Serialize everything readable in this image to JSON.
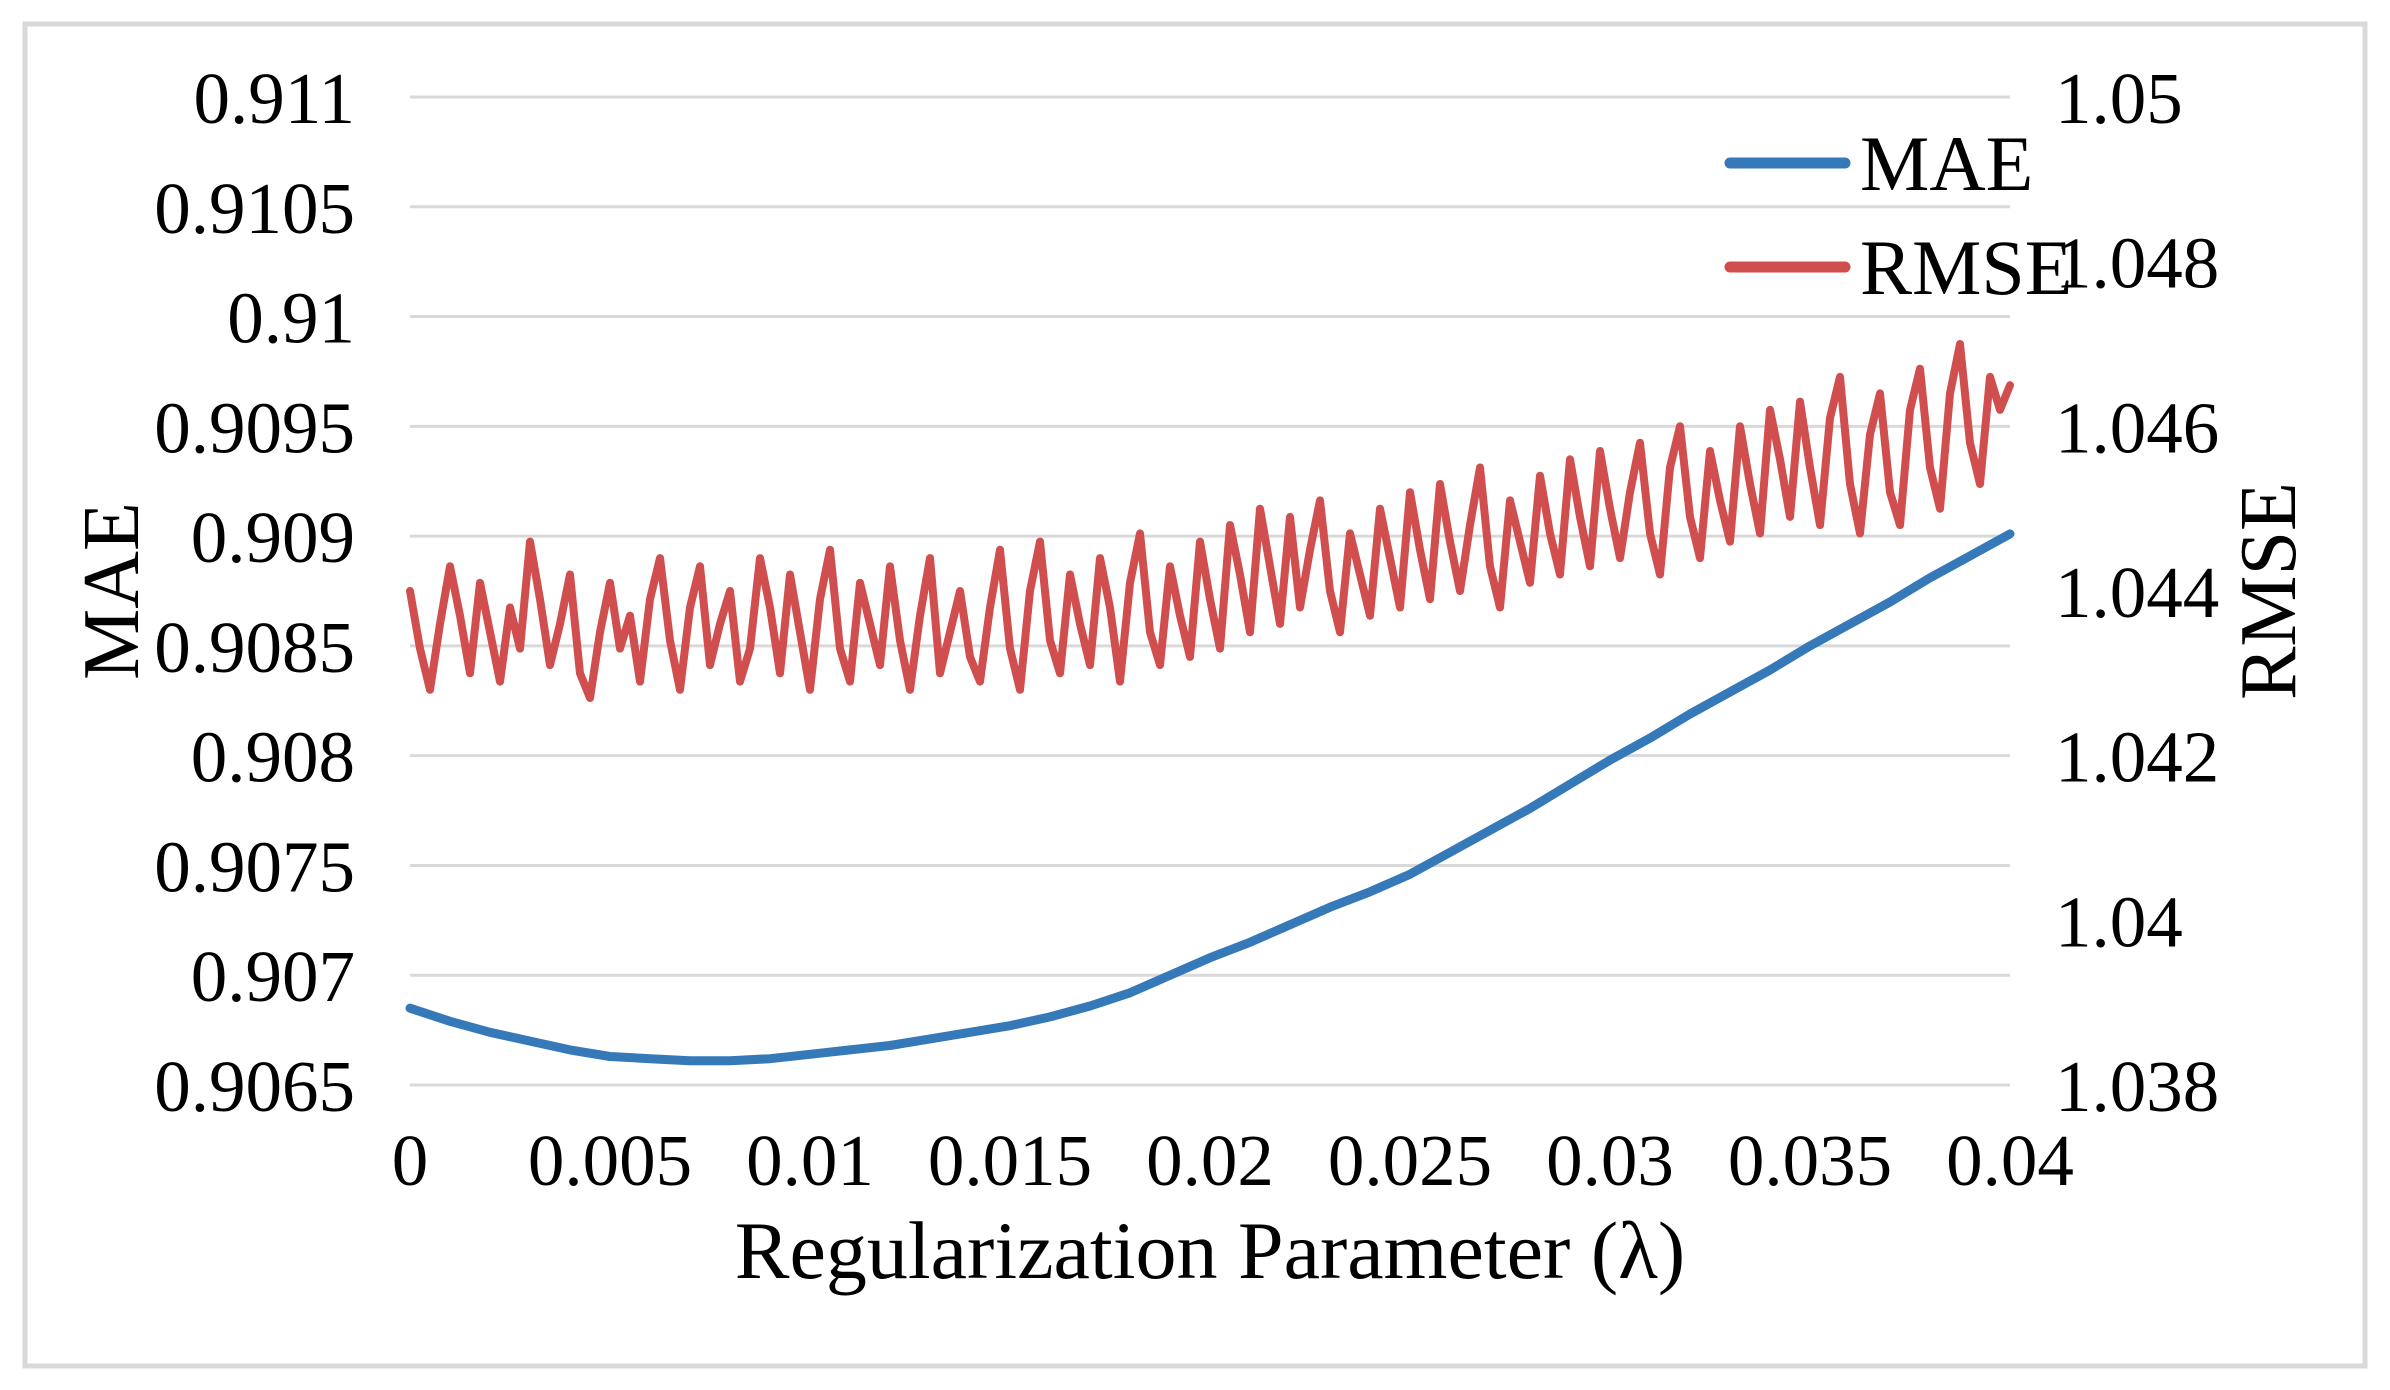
{
  "colors": {
    "mae_line": "#3579B8",
    "rmse_line": "#D04F4E",
    "gridline": "#D9D9D9",
    "frame_border": "#D9D9D9",
    "text": "#000000",
    "background": "#FFFFFF"
  },
  "chart_data": {
    "type": "line",
    "title": "",
    "xlabel": "Regularization Parameter (λ)",
    "ylabel_left": "MAE",
    "ylabel_right": "RMSE",
    "grid": "horizontal-only",
    "legend_position": "top-right-inside",
    "x_range": [
      0,
      0.04
    ],
    "left_axis": {
      "title": "MAE",
      "range": [
        0.9065,
        0.911
      ],
      "tick_step": 0.0005,
      "tick_labels": [
        "0.911",
        "0.9105",
        "0.91",
        "0.9095",
        "0.909",
        "0.9085",
        "0.908",
        "0.9075",
        "0.907",
        "0.9065"
      ]
    },
    "right_axis": {
      "title": "RMSE",
      "range": [
        1.038,
        1.05
      ],
      "tick_step": 0.002,
      "tick_labels": [
        "1.05",
        "1.048",
        "1.046",
        "1.044",
        "1.042",
        "1.04",
        "1.038"
      ]
    },
    "x_axis": {
      "title": "Regularization Parameter (λ)",
      "tick_values": [
        0,
        0.005,
        0.01,
        0.015,
        0.02,
        0.025,
        0.03,
        0.035,
        0.04
      ],
      "tick_labels": [
        "0",
        "0.005",
        "0.01",
        "0.015",
        "0.02",
        "0.025",
        "0.03",
        "0.035",
        "0.04"
      ]
    },
    "legend": [
      {
        "label": "MAE",
        "color": "#3579B8"
      },
      {
        "label": "RMSE",
        "color": "#D04F4E"
      }
    ],
    "series": [
      {
        "name": "MAE",
        "axis": "left",
        "color": "#3579B8",
        "x_start": 0,
        "x_step": 0.001,
        "values": [
          0.90685,
          0.90679,
          0.90674,
          0.9067,
          0.90666,
          0.90663,
          0.90662,
          0.90661,
          0.90661,
          0.90662,
          0.90664,
          0.90666,
          0.90668,
          0.90671,
          0.90674,
          0.90677,
          0.90681,
          0.90686,
          0.90692,
          0.907,
          0.90708,
          0.90715,
          0.90723,
          0.90731,
          0.90738,
          0.90746,
          0.90756,
          0.90766,
          0.90776,
          0.90787,
          0.90798,
          0.90808,
          0.90819,
          0.90829,
          0.90839,
          0.9085,
          0.9086,
          0.9087,
          0.90881,
          0.90891,
          0.90901
        ]
      },
      {
        "name": "RMSE",
        "axis": "right",
        "color": "#D04F4E",
        "x_start": 0,
        "x_step": 0.00025,
        "values": [
          1.044,
          1.0433,
          1.0428,
          1.0436,
          1.0443,
          1.0437,
          1.043,
          1.0441,
          1.0435,
          1.0429,
          1.0438,
          1.0433,
          1.0446,
          1.0439,
          1.0431,
          1.0436,
          1.0442,
          1.043,
          1.0427,
          1.0435,
          1.0441,
          1.0433,
          1.0437,
          1.0429,
          1.0439,
          1.0444,
          1.0434,
          1.0428,
          1.0438,
          1.0443,
          1.0431,
          1.0436,
          1.044,
          1.0429,
          1.0433,
          1.0444,
          1.0438,
          1.043,
          1.0442,
          1.0435,
          1.0428,
          1.0439,
          1.0445,
          1.0433,
          1.0429,
          1.0441,
          1.0436,
          1.0431,
          1.0443,
          1.0434,
          1.0428,
          1.0437,
          1.0444,
          1.043,
          1.0435,
          1.044,
          1.0432,
          1.0429,
          1.0438,
          1.0445,
          1.0433,
          1.0428,
          1.044,
          1.0446,
          1.0434,
          1.043,
          1.0442,
          1.0436,
          1.0431,
          1.0444,
          1.0438,
          1.0429,
          1.0441,
          1.0447,
          1.0435,
          1.0431,
          1.0443,
          1.0437,
          1.0432,
          1.0446,
          1.0439,
          1.0433,
          1.0448,
          1.0442,
          1.0435,
          1.045,
          1.0443,
          1.0436,
          1.0449,
          1.0438,
          1.0445,
          1.0451,
          1.044,
          1.0435,
          1.0447,
          1.0442,
          1.0437,
          1.045,
          1.0444,
          1.0438,
          1.0452,
          1.0445,
          1.0439,
          1.0453,
          1.0446,
          1.044,
          1.0448,
          1.0455,
          1.0443,
          1.0438,
          1.0451,
          1.0446,
          1.0441,
          1.0454,
          1.0447,
          1.0442,
          1.0456,
          1.0449,
          1.0443,
          1.0457,
          1.045,
          1.0444,
          1.0452,
          1.0458,
          1.0447,
          1.0442,
          1.0455,
          1.046,
          1.0449,
          1.0444,
          1.0457,
          1.0451,
          1.0446,
          1.046,
          1.0453,
          1.0447,
          1.0462,
          1.0456,
          1.0449,
          1.0463,
          1.0455,
          1.0448,
          1.0461,
          1.0466,
          1.0453,
          1.0447,
          1.0459,
          1.0464,
          1.0452,
          1.0448,
          1.0462,
          1.0467,
          1.0455,
          1.045,
          1.0464,
          1.047,
          1.0458,
          1.0453,
          1.0466,
          1.0462,
          1.0465
        ]
      }
    ]
  }
}
